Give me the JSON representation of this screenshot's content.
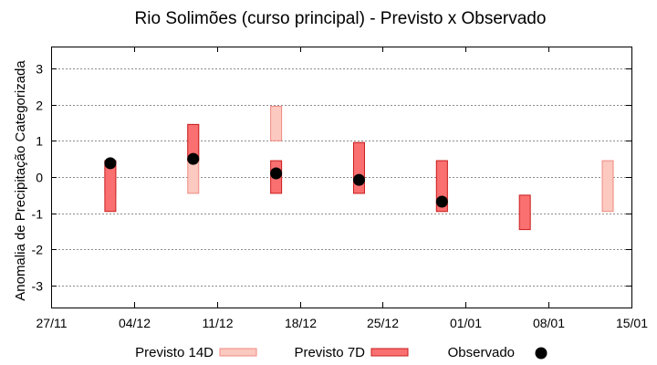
{
  "chart_data": {
    "type": "floating-bar",
    "title": "Rio Solimões (curso principal) - Previsto x Observado",
    "ylabel": "Anomalia de Precipitação Categorizada",
    "xlabel": "",
    "ylim": [
      -3.6,
      3.6
    ],
    "yticks": [
      3,
      2,
      1,
      0,
      -1,
      -2,
      -3
    ],
    "x_start": "27/11",
    "x_ticks": [
      "27/11",
      "04/12",
      "11/12",
      "18/12",
      "25/12",
      "01/01",
      "08/01",
      "15/01"
    ],
    "x_day_range": [
      0,
      49
    ],
    "grid": true,
    "legend_position": "bottom",
    "colors": {
      "previsto14d_fill": "#fbc9c0",
      "previsto14d_stroke": "#f08a80",
      "previsto7d_fill": "#fa7070",
      "previsto7d_stroke": "#c81e1e",
      "observado": "#000000"
    },
    "series": [
      {
        "name": "Previsto 14D",
        "kind": "range",
        "points": [
          {
            "day": 5,
            "low": -0.45,
            "high": 0.45
          },
          {
            "day": 12,
            "low": -0.45,
            "high": 1.45
          },
          {
            "day": 19,
            "low": 1.0,
            "high": 1.95
          },
          {
            "day": 26,
            "low": -0.45,
            "high": 0.95
          },
          {
            "day": 33,
            "low": -0.95,
            "high": 0.45
          },
          {
            "day": 47,
            "low": -0.95,
            "high": 0.45
          }
        ]
      },
      {
        "name": "Previsto 7D",
        "kind": "range",
        "points": [
          {
            "day": 5,
            "low": -0.95,
            "high": 0.45
          },
          {
            "day": 12,
            "low": 0.45,
            "high": 1.45
          },
          {
            "day": 19,
            "low": -0.45,
            "high": 0.45
          },
          {
            "day": 26,
            "low": -0.45,
            "high": 0.95
          },
          {
            "day": 33,
            "low": -0.95,
            "high": 0.45
          },
          {
            "day": 40,
            "low": -1.45,
            "high": -0.5
          }
        ]
      },
      {
        "name": "Observado",
        "kind": "point",
        "points": [
          {
            "day": 5,
            "value": 0.38
          },
          {
            "day": 12,
            "value": 0.5
          },
          {
            "day": 19,
            "value": 0.1
          },
          {
            "day": 26,
            "value": -0.08
          },
          {
            "day": 33,
            "value": -0.68
          }
        ]
      }
    ]
  }
}
